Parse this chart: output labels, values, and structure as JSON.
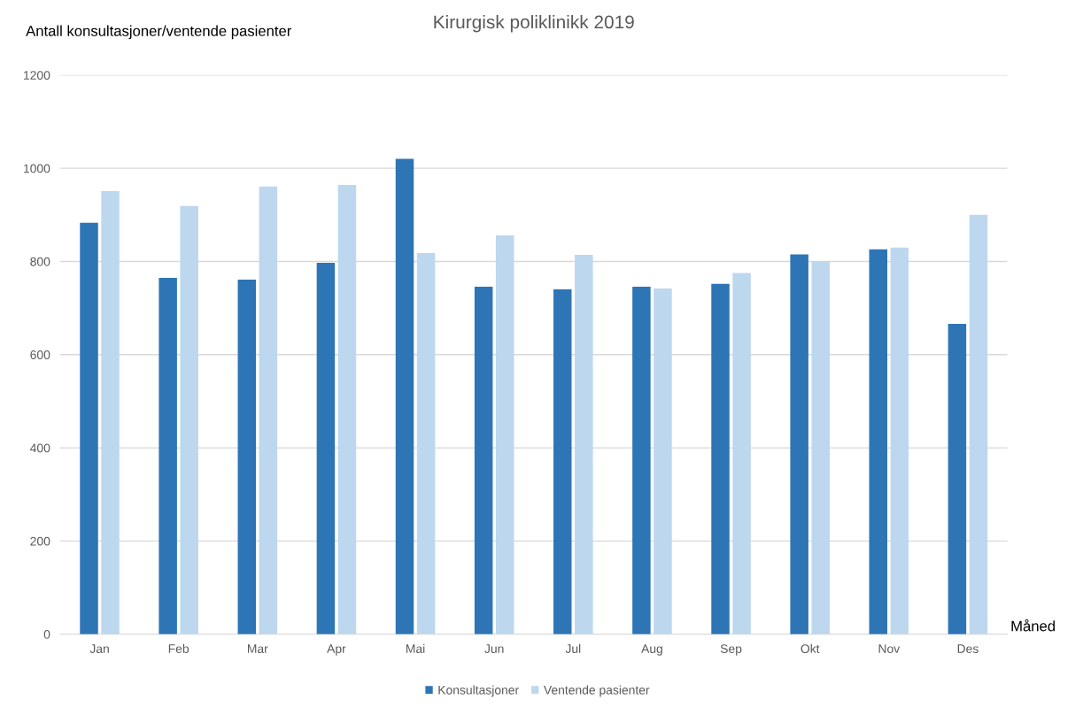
{
  "chart_data": {
    "type": "bar",
    "title": "Kirurgisk poliklinikk 2019",
    "ylabel": "Antall konsultasjoner/ventende pasienter",
    "xlabel": "Måned",
    "categories": [
      "Jan",
      "Feb",
      "Mar",
      "Apr",
      "Mai",
      "Jun",
      "Jul",
      "Aug",
      "Sep",
      "Okt",
      "Nov",
      "Des"
    ],
    "series": [
      {
        "name": "Konsultasjoner",
        "color": "#2e75b6",
        "values": [
          883,
          765,
          761,
          797,
          1020,
          746,
          740,
          746,
          752,
          815,
          826,
          666
        ]
      },
      {
        "name": "Ventende pasienter",
        "color": "#bdd7ee",
        "values": [
          951,
          919,
          961,
          964,
          818,
          856,
          814,
          742,
          775,
          801,
          830,
          900
        ]
      }
    ],
    "ylim": [
      0,
      1200
    ],
    "yticks": [
      0,
      200,
      400,
      600,
      800,
      1000,
      1200
    ],
    "grid": "y",
    "legend": "bottom"
  }
}
